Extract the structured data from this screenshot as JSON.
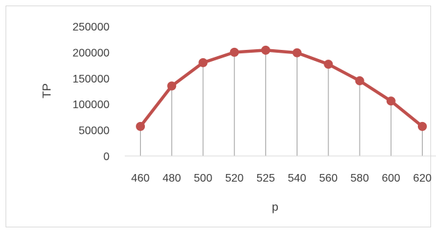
{
  "chart_data": {
    "type": "line",
    "title": "",
    "xlabel": "p",
    "ylabel": "TP",
    "x": [
      "460",
      "480",
      "500",
      "520",
      "525",
      "540",
      "560",
      "580",
      "600",
      "620"
    ],
    "series": [
      {
        "values": [
          57000,
          135000,
          180000,
          200000,
          204000,
          199000,
          177000,
          145000,
          106000,
          57000
        ]
      }
    ],
    "ylim": [
      0,
      250000
    ],
    "yticks": [
      "0",
      "50000",
      "100000",
      "150000",
      "200000",
      "250000"
    ],
    "drop_lines": true,
    "markers": true,
    "legend": "none",
    "colors": {
      "series": "#c0504d",
      "marker": "#c0504d",
      "drop_line": "#a6a6a6",
      "axis": "#d9d9d9",
      "text": "#404040"
    }
  }
}
